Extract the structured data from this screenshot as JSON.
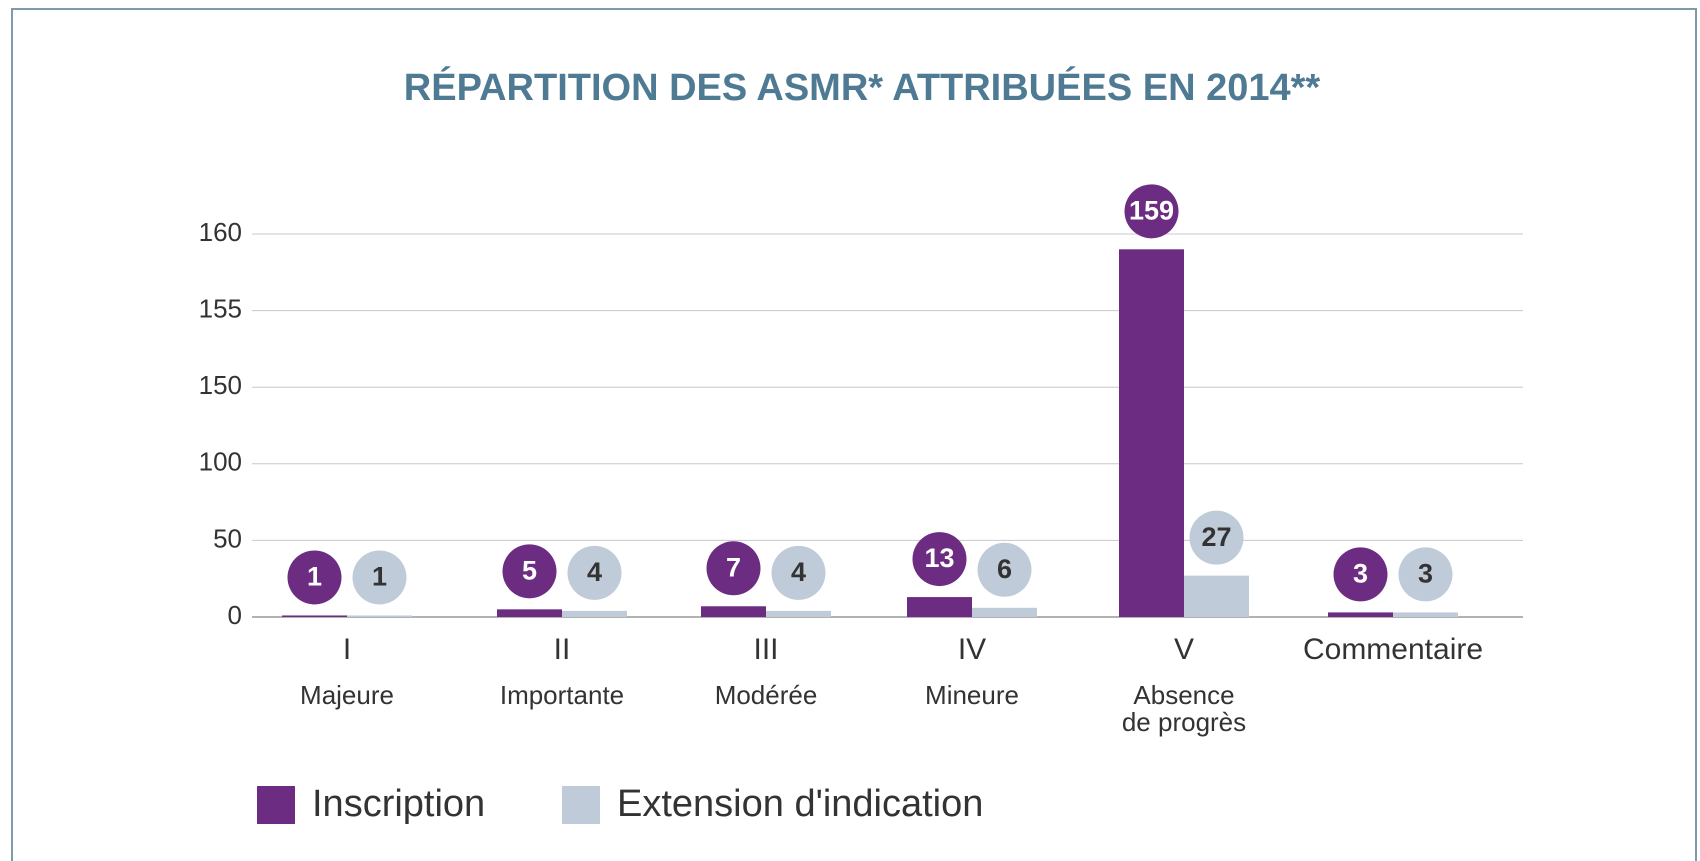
{
  "chart_data": {
    "type": "bar",
    "title": "RÉPARTITION DES ASMR* ATTRIBUÉES EN 2014**",
    "categories": [
      "I",
      "II",
      "III",
      "IV",
      "V",
      "Commentaire"
    ],
    "category_subtitles": [
      [
        "Majeure"
      ],
      [
        "Importante"
      ],
      [
        "Modérée"
      ],
      [
        "Mineure"
      ],
      [
        "Absence",
        "de progrès"
      ],
      []
    ],
    "series": [
      {
        "name": "Inscription",
        "color": "#6b2c82",
        "values": [
          1,
          5,
          7,
          13,
          159,
          3
        ]
      },
      {
        "name": "Extension d'indication",
        "color": "#bfcbd8",
        "values": [
          1,
          4,
          4,
          6,
          27,
          3
        ]
      }
    ],
    "ylim": [
      0,
      160
    ],
    "yticks": [
      0,
      50,
      100,
      150,
      155,
      160
    ],
    "grid": true,
    "legend": "bottom"
  }
}
